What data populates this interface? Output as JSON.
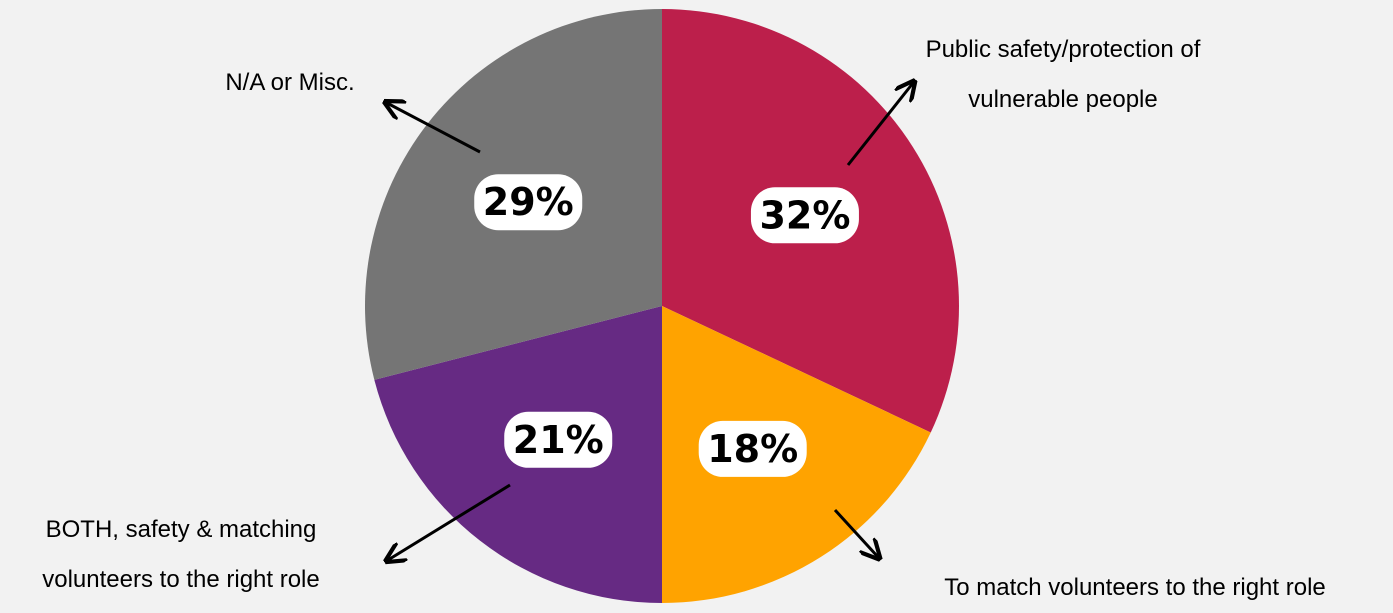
{
  "chart_data": {
    "type": "pie",
    "categories": [
      "Public safety/protection of vulnerable people",
      "To match volunteers to the right role",
      "BOTH, safety & matching volunteers to the right role",
      "N/A or Misc."
    ],
    "values": [
      32,
      18,
      21,
      29
    ],
    "value_labels": [
      "32%",
      "18%",
      "21%",
      "29%"
    ],
    "colors": [
      "#bc1f4b",
      "#ffa300",
      "#662a83",
      "#757575"
    ]
  }
}
